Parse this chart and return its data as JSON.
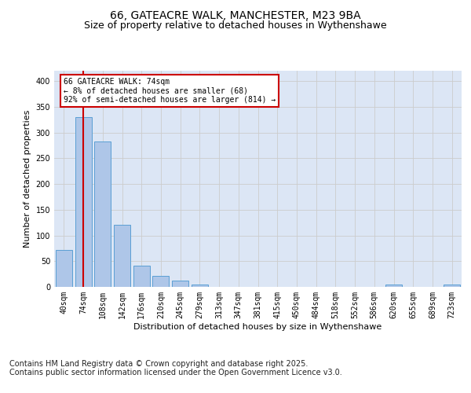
{
  "title1": "66, GATEACRE WALK, MANCHESTER, M23 9BA",
  "title2": "Size of property relative to detached houses in Wythenshawe",
  "xlabel": "Distribution of detached houses by size in Wythenshawe",
  "ylabel": "Number of detached properties",
  "categories": [
    "40sqm",
    "74sqm",
    "108sqm",
    "142sqm",
    "176sqm",
    "210sqm",
    "245sqm",
    "279sqm",
    "313sqm",
    "347sqm",
    "381sqm",
    "415sqm",
    "450sqm",
    "484sqm",
    "518sqm",
    "552sqm",
    "586sqm",
    "620sqm",
    "655sqm",
    "689sqm",
    "723sqm"
  ],
  "values": [
    72,
    330,
    283,
    120,
    42,
    22,
    12,
    5,
    0,
    0,
    0,
    0,
    0,
    0,
    0,
    0,
    0,
    5,
    0,
    0,
    5
  ],
  "bar_color": "#aec6e8",
  "bar_edge_color": "#5a9fd4",
  "redline_index": 1,
  "annotation_text": "66 GATEACRE WALK: 74sqm\n← 8% of detached houses are smaller (68)\n92% of semi-detached houses are larger (814) →",
  "annotation_box_color": "#ffffff",
  "annotation_box_edge": "#cc0000",
  "redline_color": "#cc0000",
  "ylim": [
    0,
    420
  ],
  "yticks": [
    0,
    50,
    100,
    150,
    200,
    250,
    300,
    350,
    400
  ],
  "grid_color": "#cccccc",
  "bg_color": "#dce6f5",
  "footer": "Contains HM Land Registry data © Crown copyright and database right 2025.\nContains public sector information licensed under the Open Government Licence v3.0.",
  "title_fontsize": 10,
  "subtitle_fontsize": 9,
  "label_fontsize": 8,
  "tick_fontsize": 7,
  "footer_fontsize": 7
}
